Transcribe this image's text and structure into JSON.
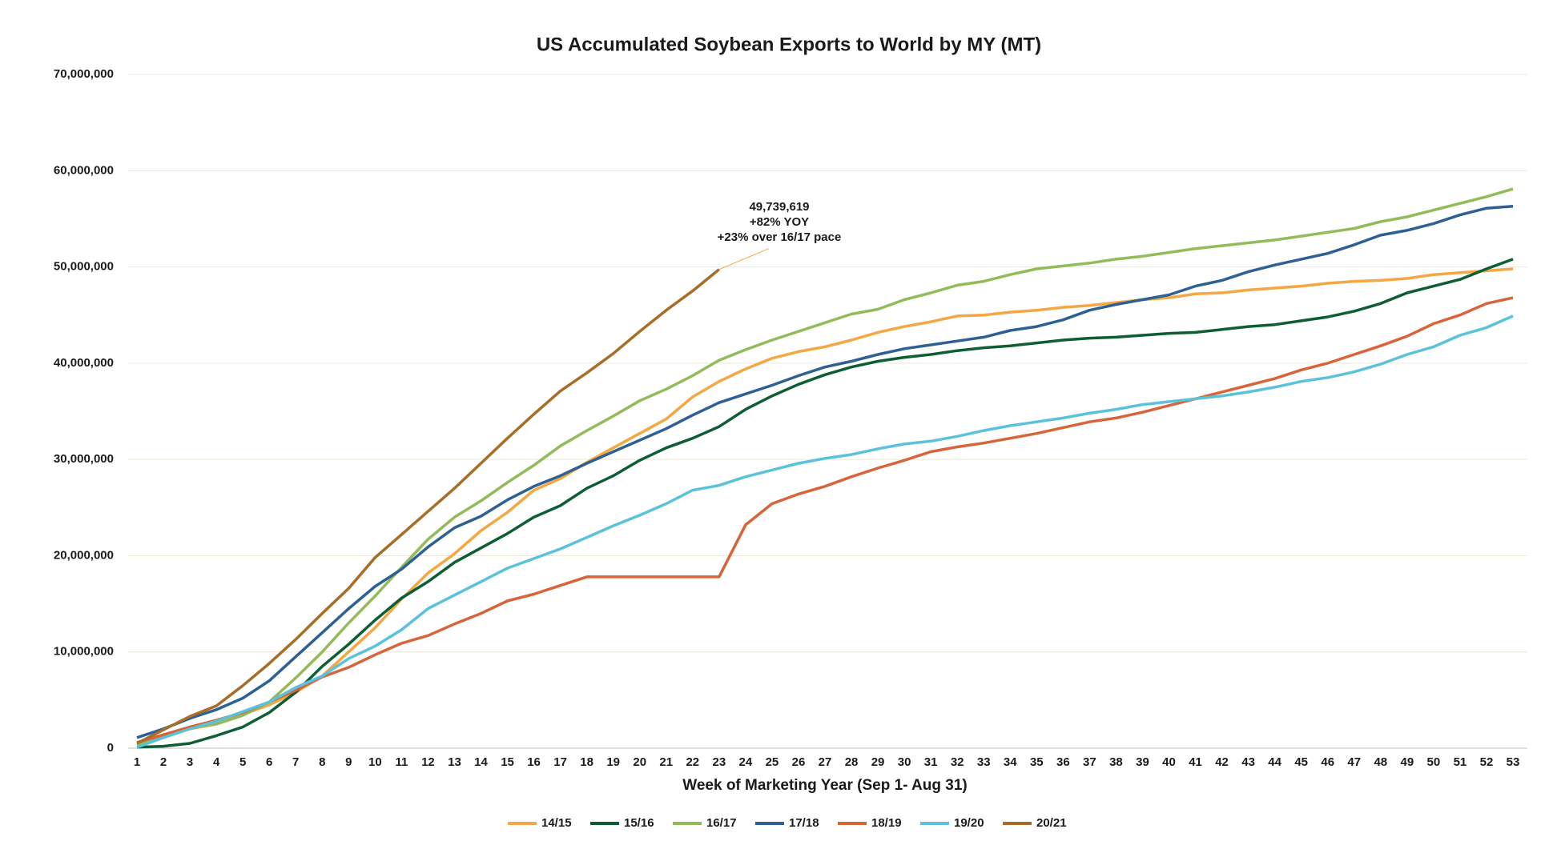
{
  "chart_data": {
    "type": "line",
    "title": "US Accumulated Soybean Exports to World by MY (MT)",
    "x_label": "Week of Marketing Year (Sep 1- Aug 31)",
    "x": [
      1,
      2,
      3,
      4,
      5,
      6,
      7,
      8,
      9,
      10,
      11,
      12,
      13,
      14,
      15,
      16,
      17,
      18,
      19,
      20,
      21,
      22,
      23,
      24,
      25,
      26,
      27,
      28,
      29,
      30,
      31,
      32,
      33,
      34,
      35,
      36,
      37,
      38,
      39,
      40,
      41,
      42,
      43,
      44,
      45,
      46,
      47,
      48,
      49,
      50,
      51,
      52,
      53
    ],
    "xlim": [
      1,
      53
    ],
    "ylim": [
      0,
      70000000
    ],
    "yticks": [
      0,
      {
        "value": 10000000,
        "label": "10,000,000"
      },
      {
        "value": 20000000,
        "label": "20,000,000"
      },
      {
        "value": 30000000,
        "label": "30,000,000"
      },
      {
        "value": 40000000,
        "label": "40,000,000"
      },
      {
        "value": 50000000,
        "label": "50,000,000"
      },
      {
        "value": 60000000,
        "label": "60,000,000"
      },
      {
        "value": 70000000,
        "label": "70,000,000"
      }
    ],
    "grid": true,
    "legend": "bottom",
    "annotation": {
      "series": 6,
      "point": 22,
      "lines": [
        "49,739,619",
        "+82% YOY",
        "+23% over 16/17 pace"
      ]
    },
    "series": [
      {
        "name": "14/15",
        "color": "#f4a742",
        "values": [
          300000,
          1200000,
          2000000,
          2500000,
          3500000,
          4500000,
          5800000,
          7500000,
          10000000,
          12500000,
          15500000,
          18200000,
          20200000,
          22600000,
          24500000,
          26800000,
          28000000,
          29700000,
          31200000,
          32700000,
          34200000,
          36500000,
          38100000,
          39400000,
          40500000,
          41200000,
          41700000,
          42400000,
          43200000,
          43800000,
          44300000,
          44900000,
          45000000,
          45300000,
          45500000,
          45800000,
          46000000,
          46300000,
          46600000,
          46800000,
          47200000,
          47300000,
          47600000,
          47800000,
          48000000,
          48300000,
          48500000,
          48600000,
          48800000,
          49200000,
          49400000,
          49600000,
          49800000
        ]
      },
      {
        "name": "15/16",
        "color": "#0d5e35",
        "values": [
          100000,
          200000,
          500000,
          1300000,
          2200000,
          3700000,
          5800000,
          8500000,
          10800000,
          13300000,
          15600000,
          17300000,
          19300000,
          20800000,
          22300000,
          24000000,
          25200000,
          27000000,
          28300000,
          29900000,
          31200000,
          32200000,
          33400000,
          35200000,
          36600000,
          37800000,
          38800000,
          39600000,
          40200000,
          40600000,
          40900000,
          41300000,
          41600000,
          41800000,
          42100000,
          42400000,
          42600000,
          42700000,
          42900000,
          43100000,
          43200000,
          43500000,
          43800000,
          44000000,
          44400000,
          44800000,
          45400000,
          46200000,
          47300000,
          48000000,
          48700000,
          49800000,
          50800000
        ]
      },
      {
        "name": "16/17",
        "color": "#93bb5a",
        "values": [
          300000,
          1200000,
          2100000,
          2500000,
          3400000,
          4800000,
          7300000,
          10000000,
          13000000,
          15800000,
          18800000,
          21700000,
          24000000,
          25700000,
          27600000,
          29400000,
          31400000,
          33000000,
          34500000,
          36100000,
          37300000,
          38700000,
          40300000,
          41400000,
          42400000,
          43300000,
          44200000,
          45100000,
          45600000,
          46600000,
          47300000,
          48100000,
          48500000,
          49200000,
          49800000,
          50100000,
          50400000,
          50800000,
          51100000,
          51500000,
          51900000,
          52200000,
          52500000,
          52800000,
          53200000,
          53600000,
          54000000,
          54700000,
          55200000,
          55900000,
          56600000,
          57300000,
          58100000
        ]
      },
      {
        "name": "17/18",
        "color": "#2d6193",
        "values": [
          1100000,
          2000000,
          3100000,
          4000000,
          5200000,
          7000000,
          9500000,
          12000000,
          14500000,
          16800000,
          18600000,
          20900000,
          22900000,
          24100000,
          25800000,
          27200000,
          28300000,
          29600000,
          30800000,
          32000000,
          33200000,
          34600000,
          35900000,
          36800000,
          37700000,
          38700000,
          39600000,
          40200000,
          40900000,
          41500000,
          41900000,
          42300000,
          42700000,
          43400000,
          43800000,
          44500000,
          45500000,
          46100000,
          46600000,
          47100000,
          48000000,
          48600000,
          49500000,
          50200000,
          50800000,
          51400000,
          52300000,
          53300000,
          53800000,
          54500000,
          55400000,
          56100000,
          56300000
        ]
      },
      {
        "name": "18/19",
        "color": "#d8643a",
        "values": [
          600000,
          1400000,
          2200000,
          2900000,
          3700000,
          4800000,
          6000000,
          7400000,
          8400000,
          9700000,
          10900000,
          11700000,
          12900000,
          14000000,
          15300000,
          16000000,
          16900000,
          17800000,
          17800000,
          17800000,
          17800000,
          17800000,
          17800000,
          23200000,
          25400000,
          26400000,
          27200000,
          28200000,
          29100000,
          29900000,
          30800000,
          31300000,
          31700000,
          32200000,
          32700000,
          33300000,
          33900000,
          34300000,
          34900000,
          35600000,
          36300000,
          37000000,
          37700000,
          38400000,
          39300000,
          40000000,
          40900000,
          41800000,
          42800000,
          44100000,
          45000000,
          46200000,
          46800000
        ]
      },
      {
        "name": "19/20",
        "color": "#5bc2db",
        "values": [
          100000,
          1100000,
          2000000,
          2800000,
          3800000,
          4800000,
          6300000,
          7500000,
          9300000,
          10600000,
          12300000,
          14500000,
          15900000,
          17300000,
          18700000,
          19700000,
          20700000,
          21900000,
          23100000,
          24200000,
          25400000,
          26800000,
          27300000,
          28200000,
          28900000,
          29600000,
          30100000,
          30500000,
          31100000,
          31600000,
          31900000,
          32400000,
          33000000,
          33500000,
          33900000,
          34300000,
          34800000,
          35200000,
          35700000,
          36000000,
          36300000,
          36600000,
          37000000,
          37500000,
          38100000,
          38500000,
          39100000,
          39900000,
          40900000,
          41700000,
          42900000,
          43700000,
          44900000
        ]
      },
      {
        "name": "20/21",
        "color": "#a86d27",
        "values": [
          500000,
          1900000,
          3300000,
          4400000,
          6500000,
          8800000,
          11300000,
          14000000,
          16600000,
          19800000,
          22200000,
          24600000,
          27000000,
          29600000,
          32200000,
          34700000,
          37100000,
          39000000,
          41000000,
          43300000,
          45500000,
          47500000,
          49739619,
          null,
          null,
          null,
          null,
          null,
          null,
          null,
          null,
          null,
          null,
          null,
          null,
          null,
          null,
          null,
          null,
          null,
          null,
          null,
          null,
          null,
          null,
          null,
          null,
          null,
          null,
          null,
          null,
          null,
          null
        ]
      }
    ]
  }
}
